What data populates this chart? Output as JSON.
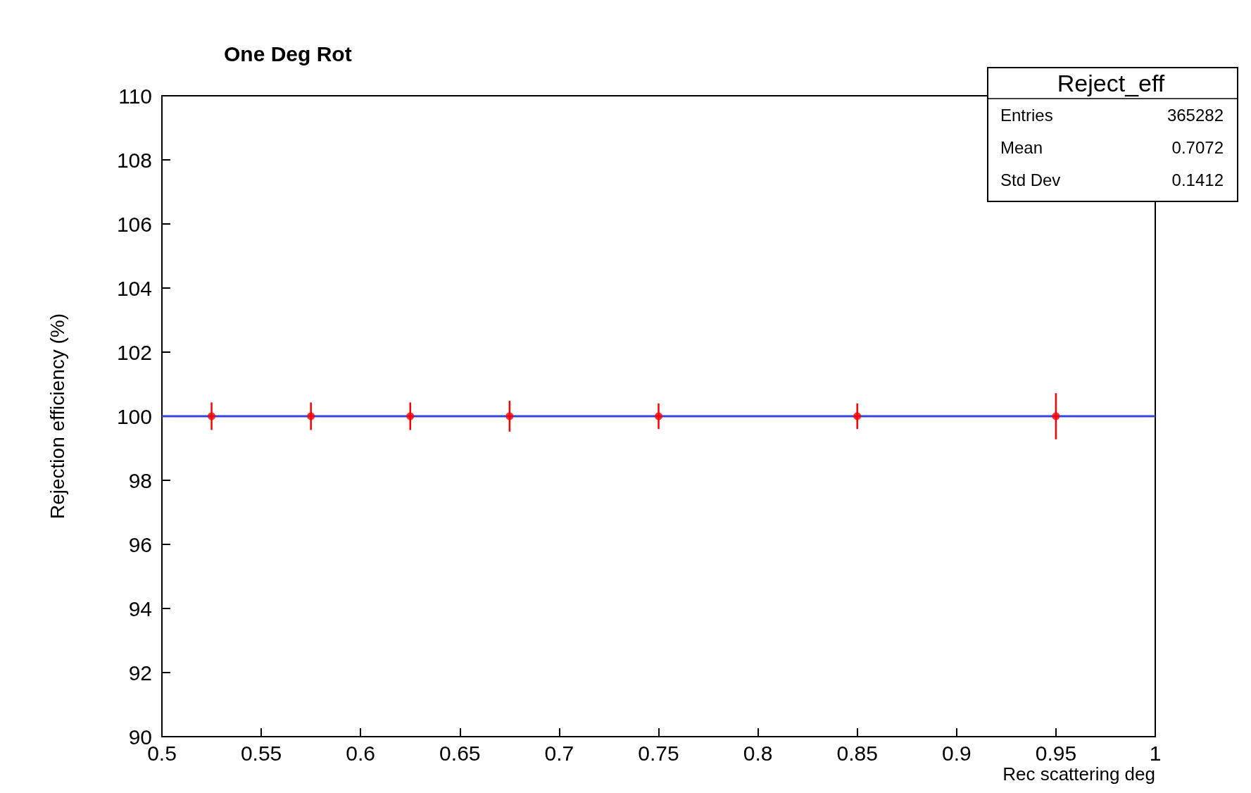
{
  "chart_data": {
    "type": "scatter",
    "title": "One Deg Rot",
    "xlabel": "Rec scattering deg",
    "ylabel": "Rejection efficiency (%)",
    "annotations": [
      "Reject_eff",
      "Entries",
      "365282",
      "Mean",
      "0.7072",
      "Std Dev",
      "0.1412"
    ],
    "series": [
      {
        "color": "#ff0000",
        "marker": "circle",
        "x": [
          0.525,
          0.575,
          0.625,
          0.675,
          0.75,
          0.85,
          0.95
        ],
        "values": [
          100,
          100,
          100,
          100,
          100,
          100,
          100
        ],
        "errors": [
          0.43,
          0.43,
          0.43,
          0.48,
          0.4,
          0.4,
          0.72
        ]
      },
      {
        "type": "line",
        "color": "#3344dd",
        "marker": "none",
        "x": [
          0.5,
          1
        ],
        "values": [
          100,
          100
        ]
      }
    ],
    "xlim": [
      0.5,
      1
    ],
    "xticks": [
      0.5,
      0.55,
      0.6,
      0.65,
      0.7,
      0.75,
      0.8,
      0.85,
      0.9,
      0.95,
      1
    ],
    "ylim": [
      90,
      110
    ],
    "yticks": [
      90,
      92,
      94,
      96,
      98,
      100,
      102,
      104,
      106,
      108,
      110
    ],
    "grid": false,
    "line_style": "solid"
  }
}
